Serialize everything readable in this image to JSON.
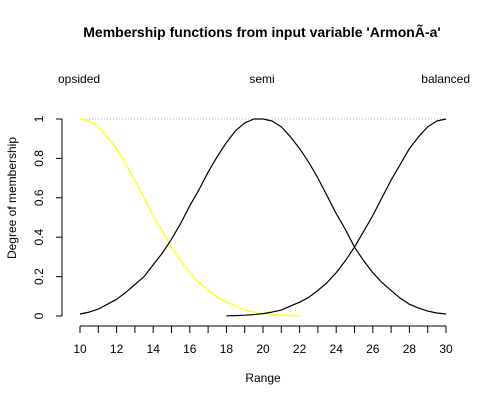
{
  "chart_data": {
    "type": "line",
    "title": "Membership functions from input variable 'ArmonÃ-a'",
    "xlabel": "Range",
    "ylabel": "Degree of membership",
    "xlim": [
      10,
      30
    ],
    "ylim": [
      0,
      1
    ],
    "x_ticks": [
      10,
      11,
      12,
      13,
      14,
      15,
      16,
      17,
      18,
      19,
      20,
      21,
      22,
      23,
      24,
      25,
      26,
      27,
      28,
      29,
      30
    ],
    "x_tick_labels": [
      "10",
      "12",
      "14",
      "16",
      "18",
      "20",
      "22",
      "24",
      "26",
      "28",
      "30"
    ],
    "y_ticks": [
      "0",
      "0.2",
      "0.4",
      "0.6",
      "0.8",
      "1"
    ],
    "reference_line": {
      "y": 1,
      "style": "dotted"
    },
    "series": [
      {
        "name": "opsided",
        "color": "#ffff00",
        "x": [
          10,
          10.5,
          11,
          11.5,
          12,
          12.5,
          13,
          13.5,
          14,
          14.5,
          15,
          15.5,
          16,
          16.5,
          17,
          17.5,
          18,
          18.5,
          19,
          19.5,
          20,
          20.5,
          21,
          21.5,
          22
        ],
        "y": [
          1.0,
          0.99,
          0.96,
          0.91,
          0.85,
          0.77,
          0.69,
          0.6,
          0.51,
          0.43,
          0.35,
          0.28,
          0.22,
          0.17,
          0.13,
          0.095,
          0.07,
          0.05,
          0.03,
          0.02,
          0.012,
          0.007,
          0.004,
          0.002,
          0.001
        ]
      },
      {
        "name": "semi",
        "color": "#000000",
        "x": [
          10,
          10.5,
          11,
          11.5,
          12,
          12.5,
          13,
          13.5,
          14,
          14.5,
          15,
          15.5,
          16,
          16.5,
          17,
          17.5,
          18,
          18.5,
          19,
          19.5,
          20,
          20.5,
          21,
          21.5,
          22,
          22.5,
          23,
          23.5,
          24,
          24.5,
          25,
          25.5,
          26,
          26.5,
          27,
          27.5,
          28,
          28.5,
          29,
          29.5,
          30
        ],
        "y": [
          0.01,
          0.02,
          0.035,
          0.06,
          0.085,
          0.12,
          0.16,
          0.2,
          0.26,
          0.32,
          0.39,
          0.47,
          0.56,
          0.64,
          0.73,
          0.81,
          0.88,
          0.94,
          0.98,
          1.0,
          1.0,
          0.99,
          0.96,
          0.91,
          0.85,
          0.78,
          0.7,
          0.61,
          0.52,
          0.44,
          0.35,
          0.28,
          0.22,
          0.17,
          0.13,
          0.09,
          0.06,
          0.04,
          0.025,
          0.015,
          0.01
        ]
      },
      {
        "name": "balanced",
        "color": "#000000",
        "x": [
          18,
          18.5,
          19,
          19.5,
          20,
          20.5,
          21,
          21.5,
          22,
          22.5,
          23,
          23.5,
          24,
          24.5,
          25,
          25.5,
          26,
          26.5,
          27,
          27.5,
          28,
          28.5,
          29,
          29.5,
          30
        ],
        "y": [
          0.001,
          0.002,
          0.004,
          0.007,
          0.012,
          0.02,
          0.03,
          0.05,
          0.07,
          0.095,
          0.13,
          0.17,
          0.22,
          0.28,
          0.35,
          0.43,
          0.51,
          0.6,
          0.69,
          0.77,
          0.85,
          0.91,
          0.96,
          0.99,
          1.0
        ]
      }
    ],
    "annotations": [
      {
        "text": "opsided",
        "at_x": 10,
        "anchor": "start"
      },
      {
        "text": "semi",
        "at_x": 20,
        "anchor": "middle"
      },
      {
        "text": "balanced",
        "at_x": 30,
        "anchor": "end"
      }
    ]
  }
}
